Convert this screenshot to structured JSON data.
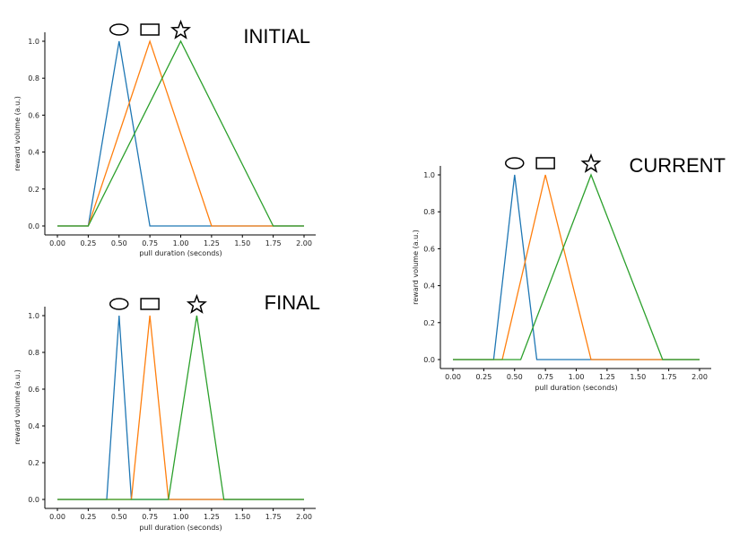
{
  "chart_data": [
    {
      "type": "line",
      "title": "INITIAL",
      "xlabel": "pull duration (seconds)",
      "ylabel": "reward volume (a.u.)",
      "xlim": [
        0,
        2
      ],
      "ylim": [
        0,
        1
      ],
      "xticks": [
        "0.00",
        "0.25",
        "0.50",
        "0.75",
        "1.00",
        "1.25",
        "1.50",
        "1.75",
        "2.00"
      ],
      "yticks": [
        "0.0",
        "0.2",
        "0.4",
        "0.6",
        "0.8",
        "1.0"
      ],
      "markers": [
        "ellipse",
        "rectangle",
        "star"
      ],
      "series": [
        {
          "color": "#1f77b4",
          "x": [
            0,
            0.25,
            0.5,
            0.75,
            2.0
          ],
          "y": [
            0,
            0,
            1,
            0,
            0
          ]
        },
        {
          "color": "#ff7f0e",
          "x": [
            0,
            0.25,
            0.75,
            1.25,
            2.0
          ],
          "y": [
            0,
            0,
            1,
            0,
            0
          ]
        },
        {
          "color": "#2ca02c",
          "x": [
            0,
            0.25,
            1.0,
            1.75,
            2.0
          ],
          "y": [
            0,
            0,
            1,
            0,
            0
          ]
        }
      ]
    },
    {
      "type": "line",
      "title": "FINAL",
      "xlabel": "pull duration (seconds)",
      "ylabel": "reward volume (a.u.)",
      "xlim": [
        0,
        2
      ],
      "ylim": [
        0,
        1
      ],
      "xticks": [
        "0.00",
        "0.25",
        "0.50",
        "0.75",
        "1.00",
        "1.25",
        "1.50",
        "1.75",
        "2.00"
      ],
      "yticks": [
        "0.0",
        "0.2",
        "0.4",
        "0.6",
        "0.8",
        "1.0"
      ],
      "markers": [
        "ellipse",
        "rectangle",
        "star"
      ],
      "series": [
        {
          "color": "#1f77b4",
          "x": [
            0,
            0.4,
            0.5,
            0.6,
            2.0
          ],
          "y": [
            0,
            0,
            1,
            0,
            0
          ]
        },
        {
          "color": "#ff7f0e",
          "x": [
            0,
            0.6,
            0.75,
            0.9,
            2.0
          ],
          "y": [
            0,
            0,
            1,
            0,
            0
          ]
        },
        {
          "color": "#2ca02c",
          "x": [
            0,
            0.9,
            1.13,
            1.35,
            2.0
          ],
          "y": [
            0,
            0,
            1,
            0,
            0
          ]
        }
      ]
    },
    {
      "type": "line",
      "title": "CURRENT",
      "xlabel": "pull duration (seconds)",
      "ylabel": "reward volume (a.u.)",
      "xlim": [
        0,
        2
      ],
      "ylim": [
        0,
        1
      ],
      "xticks": [
        "0.00",
        "0.25",
        "0.50",
        "0.75",
        "1.00",
        "1.25",
        "1.50",
        "1.75",
        "2.00"
      ],
      "yticks": [
        "0.0",
        "0.2",
        "0.4",
        "0.6",
        "0.8",
        "1.0"
      ],
      "markers": [
        "ellipse",
        "rectangle",
        "star"
      ],
      "series": [
        {
          "color": "#1f77b4",
          "x": [
            0,
            0.33,
            0.5,
            0.68,
            2.0
          ],
          "y": [
            0,
            0,
            1,
            0,
            0
          ]
        },
        {
          "color": "#ff7f0e",
          "x": [
            0,
            0.4,
            0.75,
            1.12,
            2.0
          ],
          "y": [
            0,
            0,
            1,
            0,
            0
          ]
        },
        {
          "color": "#2ca02c",
          "x": [
            0,
            0.55,
            1.12,
            1.7,
            2.0
          ],
          "y": [
            0,
            0,
            1,
            0,
            0
          ]
        }
      ]
    }
  ]
}
